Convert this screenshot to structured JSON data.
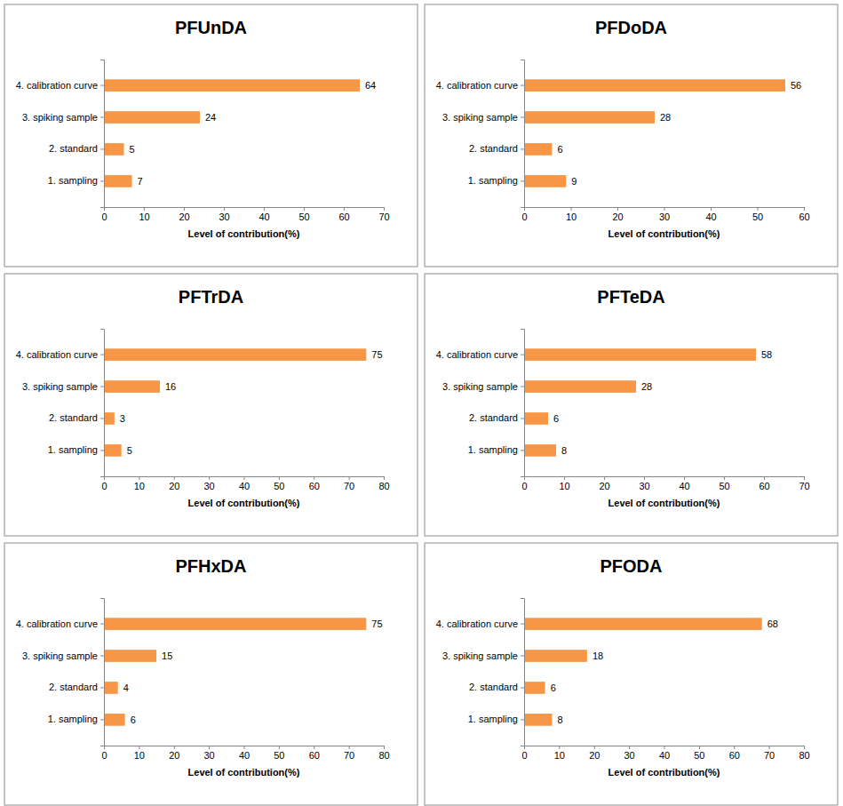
{
  "chart_data": [
    {
      "type": "bar",
      "title": "PFUnDA",
      "orientation": "horizontal",
      "data_labels": true,
      "color": "#f79646",
      "categories": [
        "4. calibration curve",
        "3. spiking sample",
        "2. standard",
        "1. sampling"
      ],
      "values": [
        64,
        24,
        5,
        7
      ],
      "xlabel": "Level of contribution(%)",
      "xlim": [
        0,
        70
      ],
      "xticks": [
        0,
        10,
        20,
        30,
        40,
        50,
        60,
        70
      ]
    },
    {
      "type": "bar",
      "title": "PFDoDA",
      "orientation": "horizontal",
      "data_labels": true,
      "color": "#f79646",
      "categories": [
        "4. calibration curve",
        "3. spiking sample",
        "2. standard",
        "1. sampling"
      ],
      "values": [
        56,
        28,
        6,
        9
      ],
      "xlabel": "Level of contribution(%)",
      "xlim": [
        0,
        60
      ],
      "xticks": [
        0,
        10,
        20,
        30,
        40,
        50,
        60
      ]
    },
    {
      "type": "bar",
      "title": "PFTrDA",
      "orientation": "horizontal",
      "data_labels": true,
      "color": "#f79646",
      "categories": [
        "4. calibration curve",
        "3. spiking sample",
        "2. standard",
        "1. sampling"
      ],
      "values": [
        75,
        16,
        3,
        5
      ],
      "xlabel": "Level of contribution(%)",
      "xlim": [
        0,
        80
      ],
      "xticks": [
        0,
        10,
        20,
        30,
        40,
        50,
        60,
        70,
        80
      ]
    },
    {
      "type": "bar",
      "title": "PFTeDA",
      "orientation": "horizontal",
      "data_labels": true,
      "color": "#f79646",
      "categories": [
        "4. calibration curve",
        "3. spiking sample",
        "2. standard",
        "1. sampling"
      ],
      "values": [
        58,
        28,
        6,
        8
      ],
      "xlabel": "Level of contribution(%)",
      "xlim": [
        0,
        70
      ],
      "xticks": [
        0,
        10,
        20,
        30,
        40,
        50,
        60,
        70
      ]
    },
    {
      "type": "bar",
      "title": "PFHxDA",
      "orientation": "horizontal",
      "data_labels": true,
      "color": "#f79646",
      "categories": [
        "4. calibration curve",
        "3. spiking sample",
        "2. standard",
        "1. sampling"
      ],
      "values": [
        75,
        15,
        4,
        6
      ],
      "xlabel": "Level of contribution(%)",
      "xlim": [
        0,
        80
      ],
      "xticks": [
        0,
        10,
        20,
        30,
        40,
        50,
        60,
        70,
        80
      ]
    },
    {
      "type": "bar",
      "title": "PFODA",
      "orientation": "horizontal",
      "data_labels": true,
      "color": "#f79646",
      "categories": [
        "4. calibration curve",
        "3. spiking sample",
        "2. standard",
        "1. sampling"
      ],
      "values": [
        68,
        18,
        6,
        8
      ],
      "xlabel": "Level of contribution(%)",
      "xlim": [
        0,
        80
      ],
      "xticks": [
        0,
        10,
        20,
        30,
        40,
        50,
        60,
        70,
        80
      ]
    }
  ]
}
